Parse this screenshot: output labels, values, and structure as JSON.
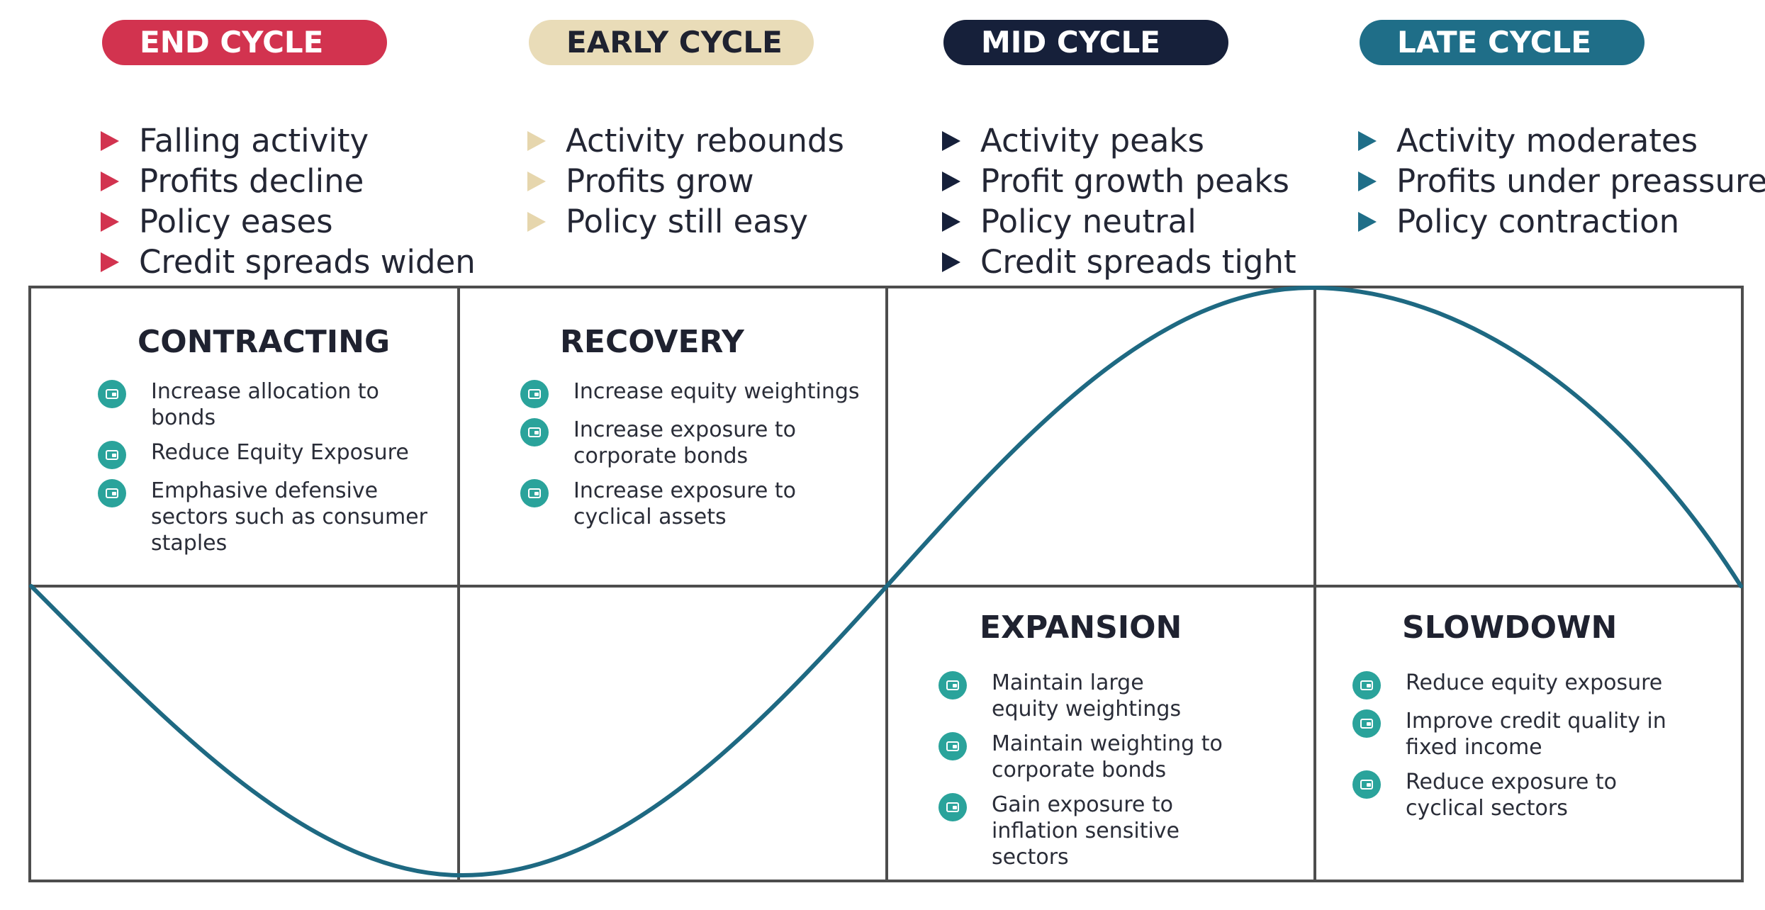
{
  "colors": {
    "end": "#d2334f",
    "early": "#e9dcb8",
    "mid": "#16203a",
    "late": "#1f6e88",
    "wave": "#1e6982",
    "icon": "#2aa39b",
    "grid": "#4d4d4d"
  },
  "phases": [
    {
      "label": "END CYCLE",
      "bullets": [
        "Falling activity",
        "Profits decline",
        "Policy eases",
        "Credit spreads widen"
      ]
    },
    {
      "label": "EARLY CYCLE",
      "bullets": [
        "Activity rebounds",
        "Profits grow",
        "Policy still easy"
      ]
    },
    {
      "label": "MID CYCLE",
      "bullets": [
        "Activity peaks",
        "Profit growth peaks",
        "Policy neutral",
        "Credit spreads tight"
      ]
    },
    {
      "label": "LATE CYCLE",
      "bullets": [
        "Activity moderates",
        "Profits under preassure",
        "Policy contraction"
      ]
    }
  ],
  "stages": {
    "contracting": {
      "title": "CONTRACTING",
      "actions": [
        "Increase allocation to bonds",
        "Reduce Equity Exposure",
        "Emphasive defensive sectors such as consumer staples"
      ]
    },
    "recovery": {
      "title": "RECOVERY",
      "actions": [
        "Increase equity weightings",
        "Increase exposure to corporate bonds",
        "Increase exposure to cyclical assets"
      ]
    },
    "expansion": {
      "title": "EXPANSION",
      "actions": [
        "Maintain large equity weightings",
        "Maintain weighting to corporate bonds",
        "Gain exposure to inflation sensitive sectors"
      ]
    },
    "slowdown": {
      "title": "SLOWDOWN",
      "actions": [
        "Reduce equity exposure",
        "Improve credit quality in fixed income",
        "Reduce exposure to cyclical sectors"
      ]
    }
  }
}
